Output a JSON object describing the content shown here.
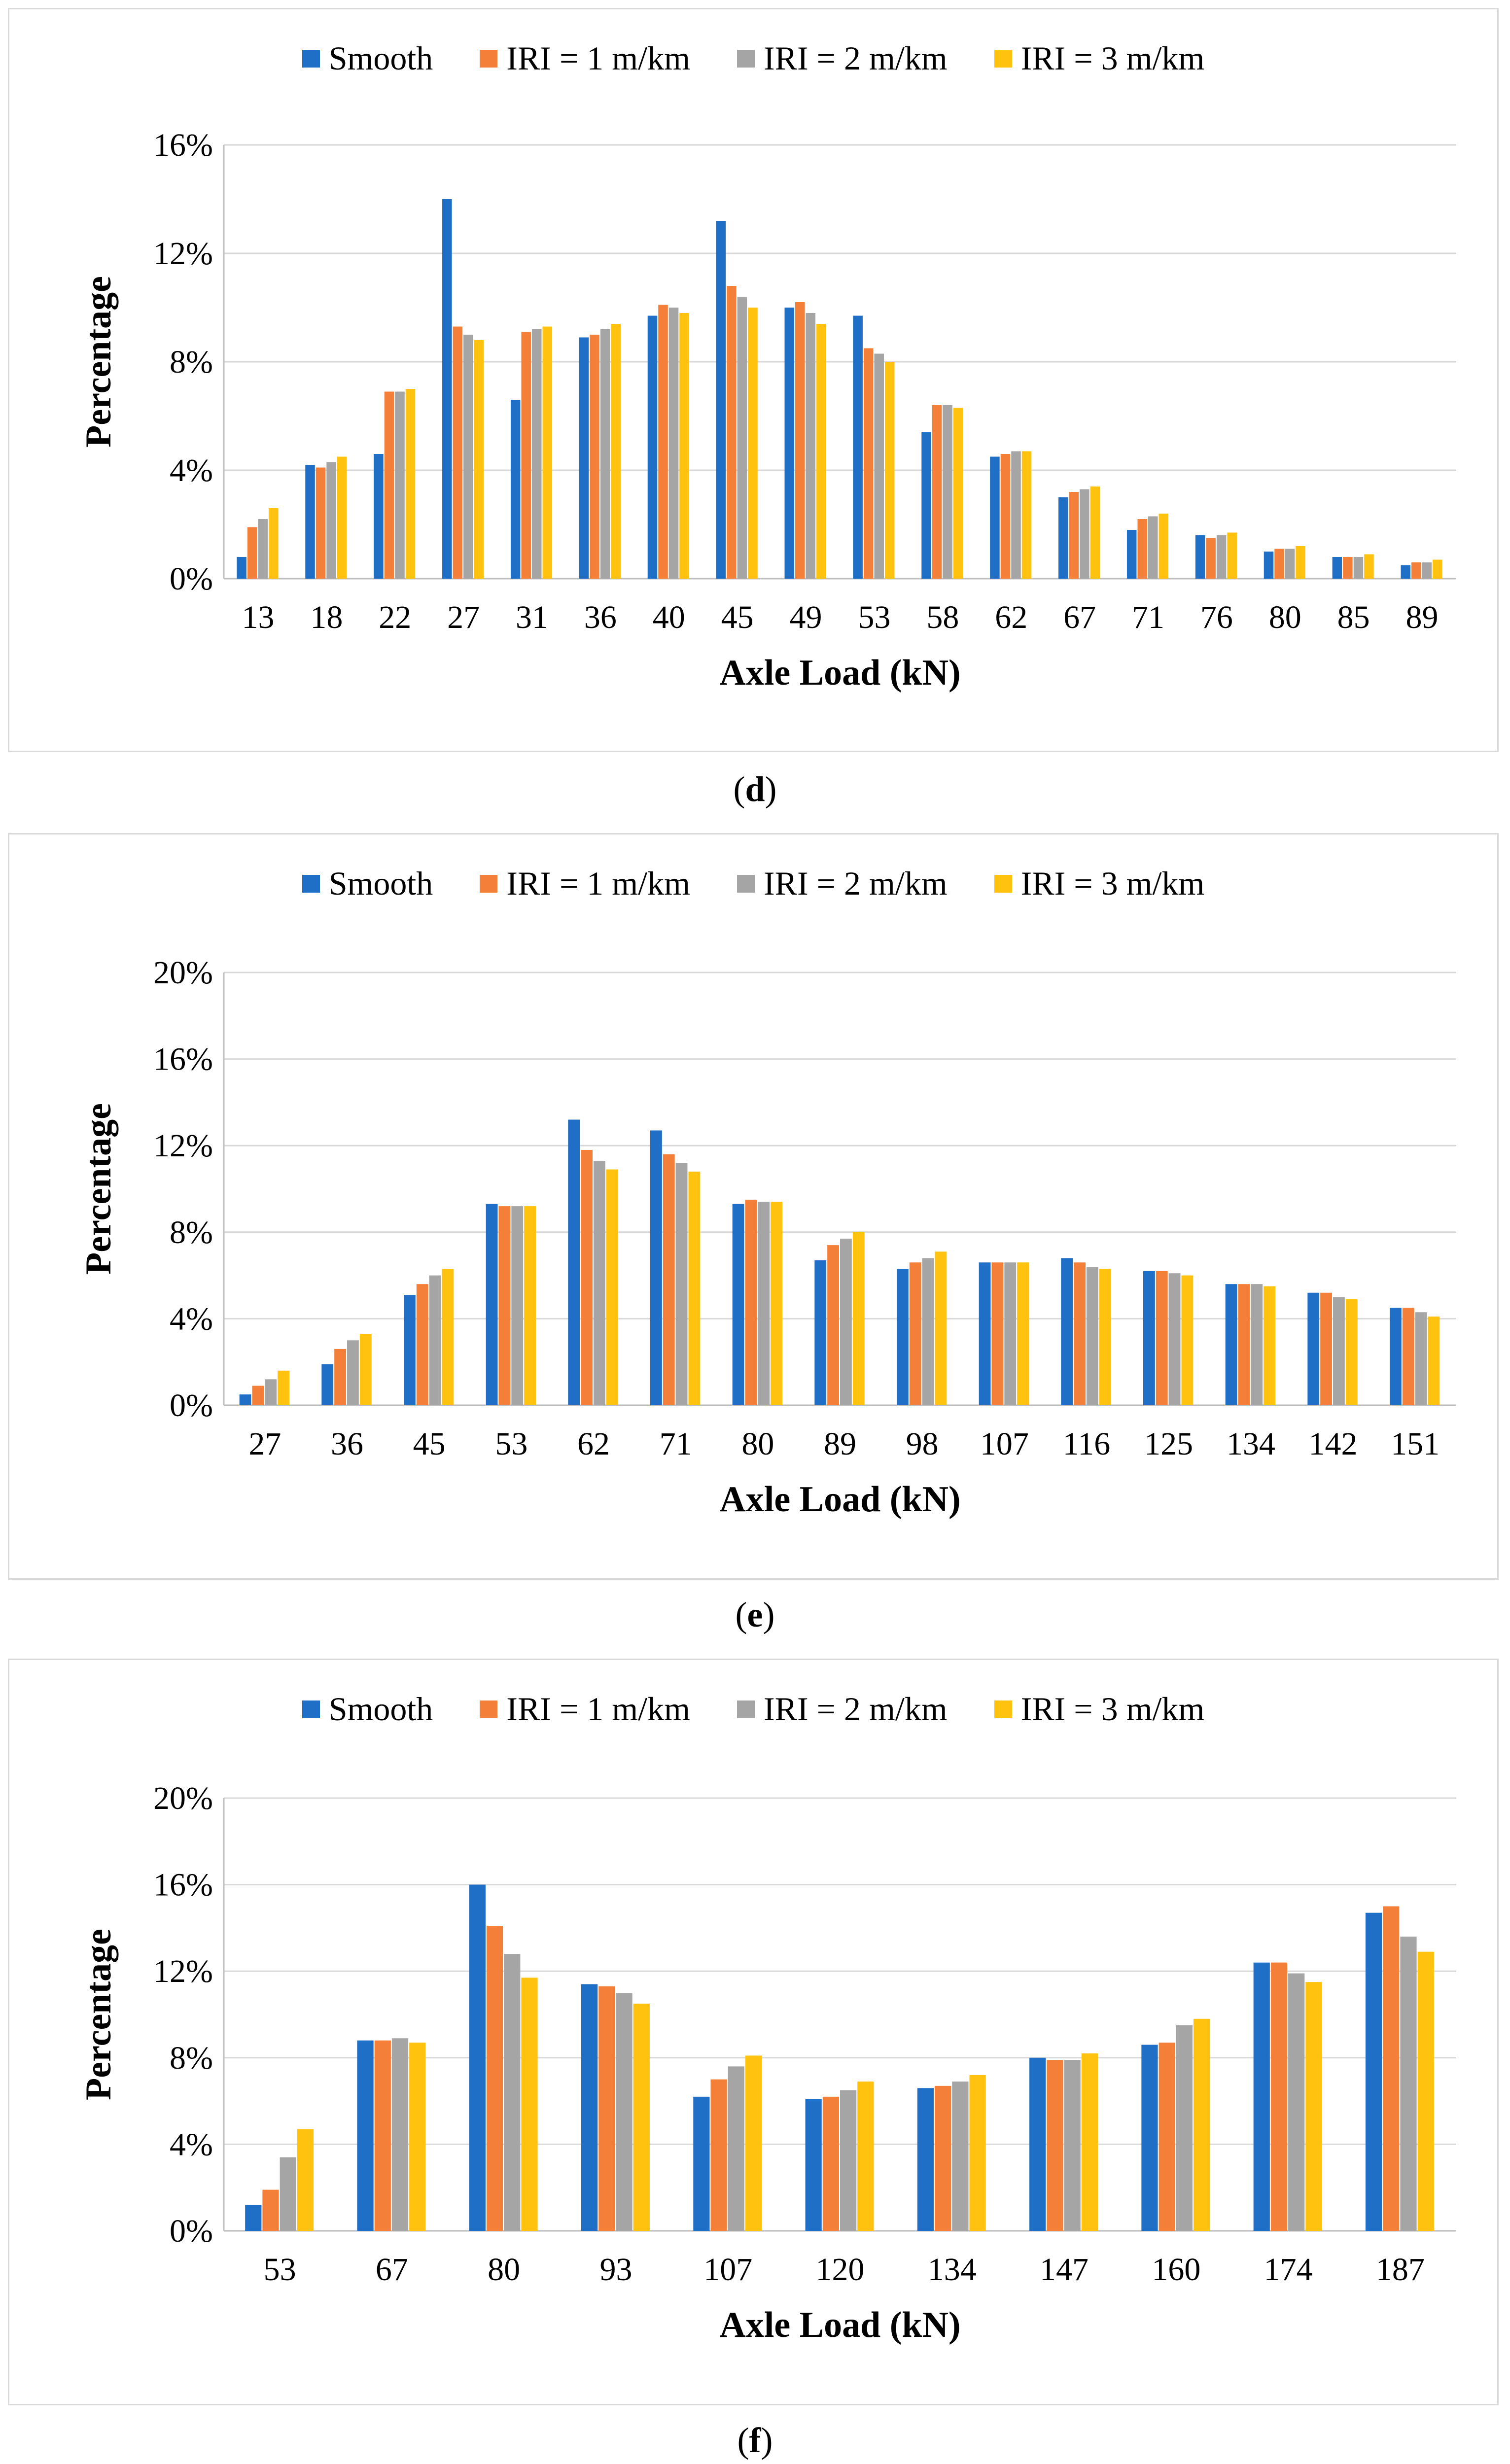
{
  "colors": {
    "smooth": "#1f6fc6",
    "iri1": "#f47f38",
    "iri2": "#a5a5a5",
    "iri3": "#ffc20e",
    "grid": "#d9d9d9",
    "axis": "#bfbfbf"
  },
  "legend": [
    "Smooth",
    "IRI = 1 m/km",
    "IRI = 2 m/km",
    "IRI = 3 m/km"
  ],
  "chart_data": [
    {
      "type": "bar",
      "caption": "d",
      "xlabel": "Axle Load (kN)",
      "ylabel": "Percentage",
      "ylim": [
        0,
        16
      ],
      "yticks": [
        "0%",
        "4%",
        "8%",
        "12%",
        "16%"
      ],
      "legend_position": "top",
      "grid": true,
      "categories": [
        "13",
        "18",
        "22",
        "27",
        "31",
        "36",
        "40",
        "45",
        "49",
        "53",
        "58",
        "62",
        "67",
        "71",
        "76",
        "80",
        "85",
        "89"
      ],
      "series": [
        {
          "name": "Smooth",
          "values": [
            0.8,
            4.2,
            4.6,
            14.0,
            6.6,
            8.9,
            9.7,
            13.2,
            10.0,
            9.7,
            5.4,
            4.5,
            3.0,
            1.8,
            1.6,
            1.0,
            0.8,
            0.5
          ]
        },
        {
          "name": "IRI = 1 m/km",
          "values": [
            1.9,
            4.1,
            6.9,
            9.3,
            9.1,
            9.0,
            10.1,
            10.8,
            10.2,
            8.5,
            6.4,
            4.6,
            3.2,
            2.2,
            1.5,
            1.1,
            0.8,
            0.6
          ]
        },
        {
          "name": "IRI = 2 m/km",
          "values": [
            2.2,
            4.3,
            6.9,
            9.0,
            9.2,
            9.2,
            10.0,
            10.4,
            9.8,
            8.3,
            6.4,
            4.7,
            3.3,
            2.3,
            1.6,
            1.1,
            0.8,
            0.6
          ]
        },
        {
          "name": "IRI = 3 m/km",
          "values": [
            2.6,
            4.5,
            7.0,
            8.8,
            9.3,
            9.4,
            9.8,
            10.0,
            9.4,
            8.0,
            6.3,
            4.7,
            3.4,
            2.4,
            1.7,
            1.2,
            0.9,
            0.7
          ]
        }
      ]
    },
    {
      "type": "bar",
      "caption": "e",
      "xlabel": "Axle Load (kN)",
      "ylabel": "Percentage",
      "ylim": [
        0,
        20
      ],
      "yticks": [
        "0%",
        "4%",
        "8%",
        "12%",
        "16%",
        "20%"
      ],
      "legend_position": "top",
      "grid": true,
      "categories": [
        "27",
        "36",
        "45",
        "53",
        "62",
        "71",
        "80",
        "89",
        "98",
        "107",
        "116",
        "125",
        "134",
        "142",
        "151"
      ],
      "series": [
        {
          "name": "Smooth",
          "values": [
            0.5,
            1.9,
            5.1,
            9.3,
            13.2,
            12.7,
            9.3,
            6.7,
            6.3,
            6.6,
            6.8,
            6.2,
            5.6,
            5.2,
            4.5
          ]
        },
        {
          "name": "IRI = 1 m/km",
          "values": [
            0.9,
            2.6,
            5.6,
            9.2,
            11.8,
            11.6,
            9.5,
            7.4,
            6.6,
            6.6,
            6.6,
            6.2,
            5.6,
            5.2,
            4.5
          ]
        },
        {
          "name": "IRI = 2 m/km",
          "values": [
            1.2,
            3.0,
            6.0,
            9.2,
            11.3,
            11.2,
            9.4,
            7.7,
            6.8,
            6.6,
            6.4,
            6.1,
            5.6,
            5.0,
            4.3
          ]
        },
        {
          "name": "IRI = 3 m/km",
          "values": [
            1.6,
            3.3,
            6.3,
            9.2,
            10.9,
            10.8,
            9.4,
            8.0,
            7.1,
            6.6,
            6.3,
            6.0,
            5.5,
            4.9,
            4.1
          ]
        }
      ]
    },
    {
      "type": "bar",
      "caption": "f",
      "xlabel": "Axle Load (kN)",
      "ylabel": "Percentage",
      "ylim": [
        0,
        20
      ],
      "yticks": [
        "0%",
        "4%",
        "8%",
        "12%",
        "16%",
        "20%"
      ],
      "legend_position": "top",
      "grid": true,
      "categories": [
        "53",
        "67",
        "80",
        "93",
        "107",
        "120",
        "134",
        "147",
        "160",
        "174",
        "187"
      ],
      "series": [
        {
          "name": "Smooth",
          "values": [
            1.2,
            8.8,
            16.0,
            11.4,
            6.2,
            6.1,
            6.6,
            8.0,
            8.6,
            12.4,
            14.7
          ]
        },
        {
          "name": "IRI = 1 m/km",
          "values": [
            1.9,
            8.8,
            14.1,
            11.3,
            7.0,
            6.2,
            6.7,
            7.9,
            8.7,
            12.4,
            15.0
          ]
        },
        {
          "name": "IRI = 2 m/km",
          "values": [
            3.4,
            8.9,
            12.8,
            11.0,
            7.6,
            6.5,
            6.9,
            7.9,
            9.5,
            11.9,
            13.6
          ]
        },
        {
          "name": "IRI = 3 m/km",
          "values": [
            4.7,
            8.7,
            11.7,
            10.5,
            8.1,
            6.9,
            7.2,
            8.2,
            9.8,
            11.5,
            12.9
          ]
        }
      ]
    }
  ]
}
